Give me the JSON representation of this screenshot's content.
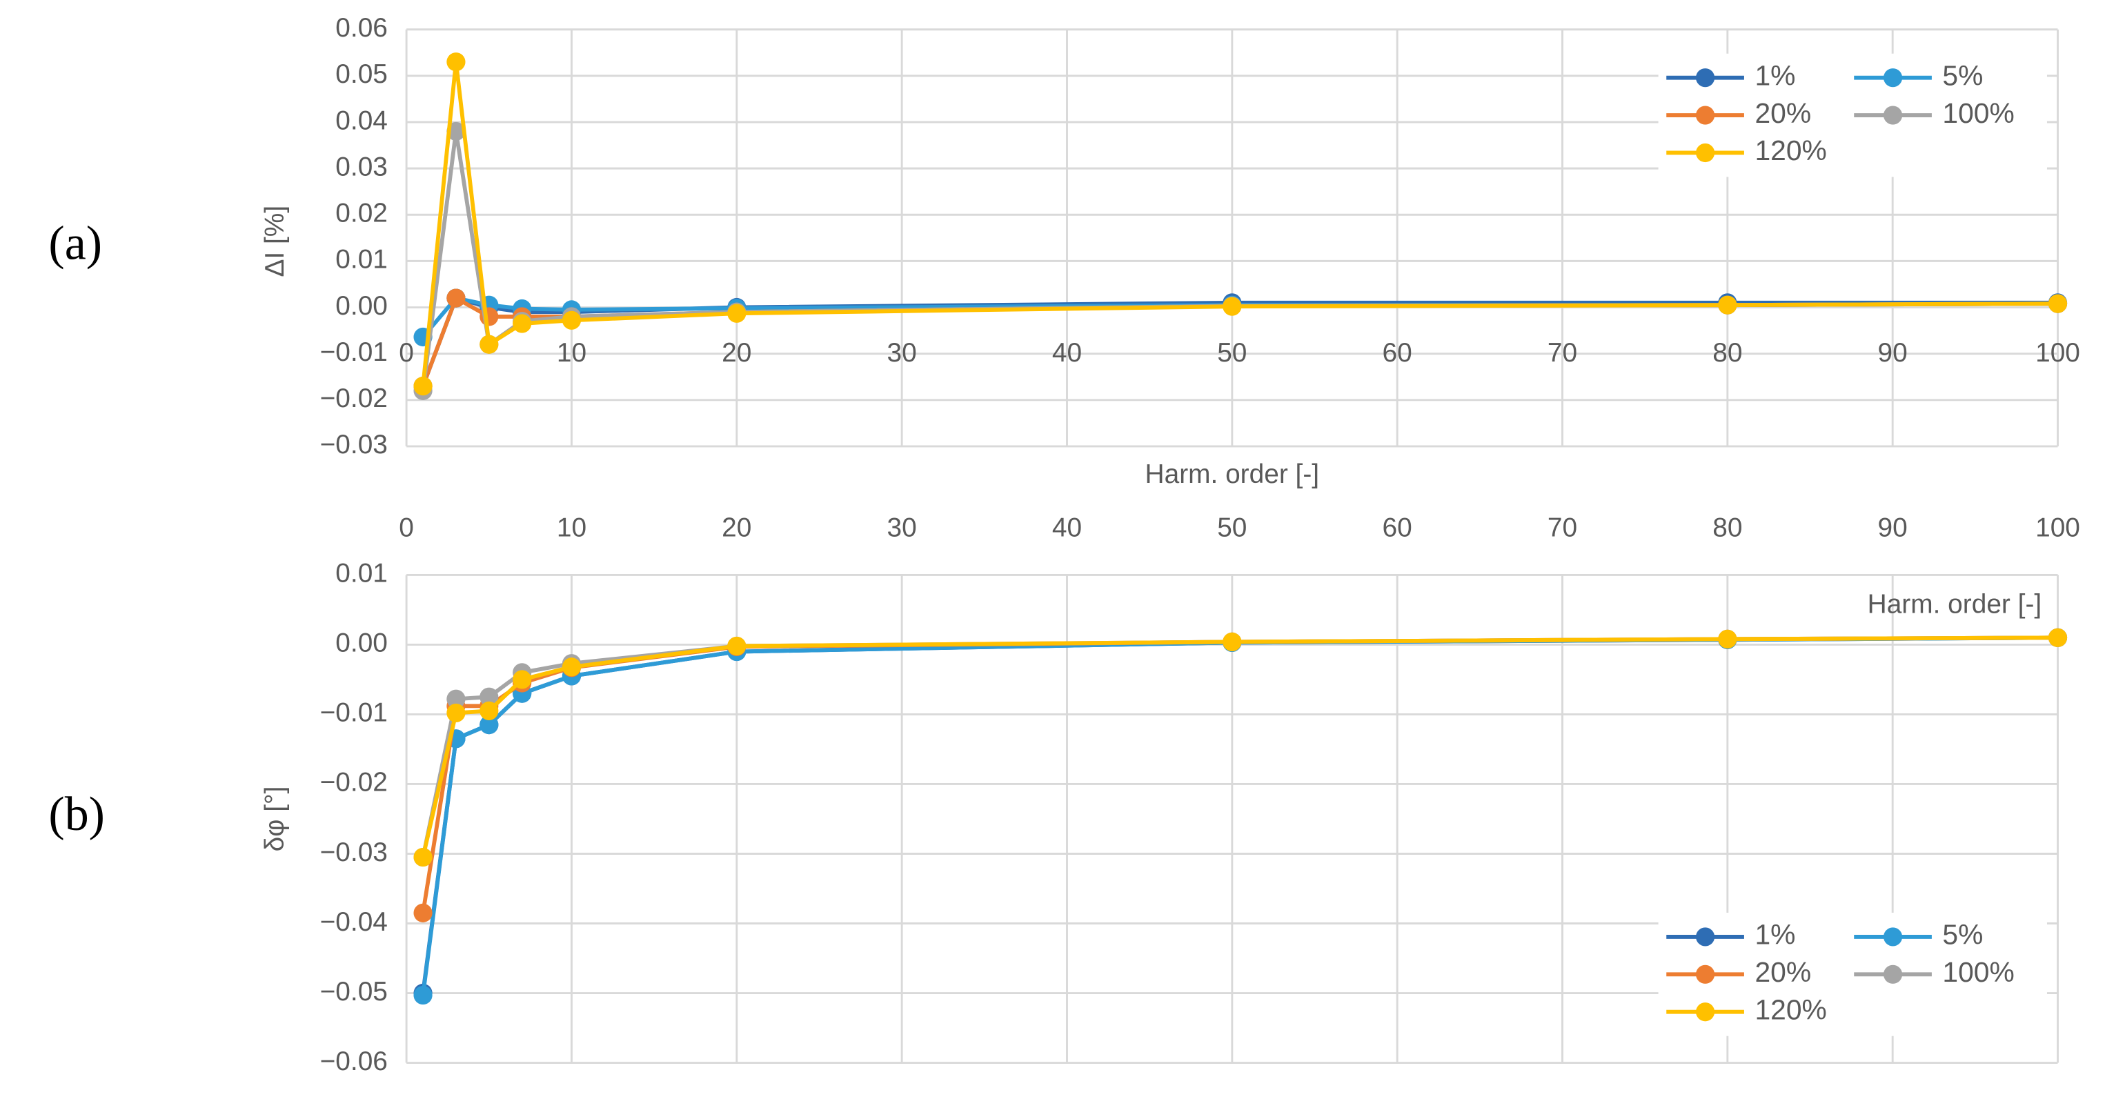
{
  "chart_data": [
    {
      "type": "line",
      "panel_label": "(a)",
      "x_title": "Harm. order [-]",
      "y_title": "ΔI [%]",
      "x": [
        1,
        3,
        5,
        7,
        10,
        20,
        50,
        80,
        100
      ],
      "xlim": [
        0,
        100
      ],
      "xticks": [
        0,
        10,
        20,
        30,
        40,
        50,
        60,
        70,
        80,
        90,
        100
      ],
      "ylim": [
        -0.03,
        0.06
      ],
      "yticks": [
        {
          "value": -0.03,
          "label": "−0.03"
        },
        {
          "value": -0.02,
          "label": "−0.02"
        },
        {
          "value": -0.01,
          "label": "−0.01"
        },
        {
          "value": 0,
          "label": "0.00"
        },
        0.01,
        0.02,
        0.03,
        0.04,
        0.05,
        0.06
      ],
      "grid": true,
      "x_tick_labels": "at-zero",
      "legend": "upper right",
      "series": [
        {
          "name": "1%",
          "color": "#2e6db4",
          "values": [
            -0.017,
            0.002,
            0.0,
            -0.001,
            -0.001,
            0.0,
            0.001,
            0.001,
            0.001
          ]
        },
        {
          "name": "5%",
          "color": "#2e9bd6",
          "values": [
            -0.0064,
            0.002,
            0.0005,
            -0.0003,
            -0.0005,
            -0.0002,
            0.0005,
            0.0005,
            0.0008
          ]
        },
        {
          "name": "20%",
          "color": "#ed7d31",
          "values": [
            -0.017,
            0.002,
            -0.002,
            -0.002,
            -0.002,
            -0.001,
            0.0003,
            0.0005,
            0.0008
          ]
        },
        {
          "name": "100%",
          "color": "#a5a5a5",
          "values": [
            -0.018,
            0.038,
            -0.008,
            -0.003,
            -0.002,
            -0.001,
            0.0003,
            0.0005,
            0.0008
          ]
        },
        {
          "name": "120%",
          "color": "#ffc000",
          "values": [
            -0.017,
            0.053,
            -0.008,
            -0.0035,
            -0.0028,
            -0.0013,
            0.0002,
            0.0005,
            0.0008
          ]
        }
      ]
    },
    {
      "type": "line",
      "panel_label": "(b)",
      "x_title": "Harm. order [-]",
      "y_title": "δφ [°]",
      "x": [
        1,
        3,
        5,
        7,
        10,
        20,
        50,
        80,
        100
      ],
      "xlim": [
        0,
        100
      ],
      "xticks": [
        0,
        10,
        20,
        30,
        40,
        50,
        60,
        70,
        80,
        90,
        100
      ],
      "ylim": [
        -0.06,
        0.01
      ],
      "yticks": [
        {
          "value": -0.06,
          "label": "−0.06"
        },
        {
          "value": -0.05,
          "label": "−0.05"
        },
        {
          "value": -0.04,
          "label": "−0.04"
        },
        {
          "value": -0.03,
          "label": "−0.03"
        },
        {
          "value": -0.02,
          "label": "−0.02"
        },
        {
          "value": -0.01,
          "label": "−0.01"
        },
        {
          "value": 0,
          "label": "0.00"
        },
        0.01
      ],
      "grid": true,
      "x_tick_labels": "top",
      "legend": "lower right",
      "series": [
        {
          "name": "1%",
          "color": "#2e6db4",
          "values": [
            -0.05,
            -0.0135,
            -0.0115,
            -0.007,
            -0.0045,
            -0.001,
            0.0003,
            0.0007,
            0.001
          ]
        },
        {
          "name": "5%",
          "color": "#2e9bd6",
          "values": [
            -0.0503,
            -0.0135,
            -0.0115,
            -0.007,
            -0.0045,
            -0.001,
            0.0003,
            0.0007,
            0.001
          ]
        },
        {
          "name": "20%",
          "color": "#ed7d31",
          "values": [
            -0.0385,
            -0.0088,
            -0.0088,
            -0.0055,
            -0.0033,
            -0.0003,
            0.0004,
            0.0008,
            0.001
          ]
        },
        {
          "name": "100%",
          "color": "#a5a5a5",
          "values": [
            -0.0305,
            -0.0078,
            -0.0075,
            -0.004,
            -0.0027,
            -0.0002,
            0.0004,
            0.0008,
            0.001
          ]
        },
        {
          "name": "120%",
          "color": "#ffc000",
          "values": [
            -0.0305,
            -0.0098,
            -0.0095,
            -0.005,
            -0.0032,
            -0.0002,
            0.0004,
            0.0008,
            0.001
          ]
        }
      ]
    }
  ]
}
